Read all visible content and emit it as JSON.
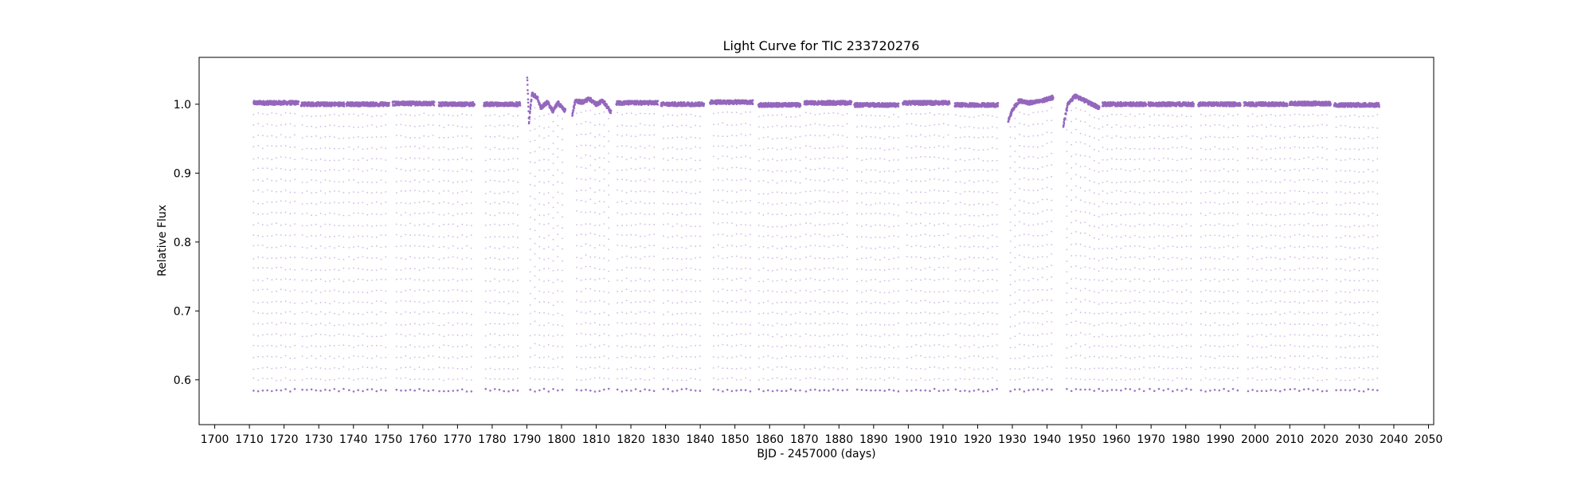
{
  "chart_data": {
    "type": "scatter",
    "title": "Light Curve for TIC 233720276",
    "xlabel": "BJD - 2457000 (days)",
    "ylabel": "Relative Flux",
    "xlim": [
      1695.5,
      2051.5
    ],
    "ylim": [
      0.535,
      1.068
    ],
    "x_ticks": [
      1700,
      1710,
      1720,
      1730,
      1740,
      1750,
      1760,
      1770,
      1780,
      1790,
      1800,
      1810,
      1820,
      1830,
      1840,
      1850,
      1860,
      1870,
      1880,
      1890,
      1900,
      1910,
      1920,
      1930,
      1940,
      1950,
      1960,
      1970,
      1980,
      1990,
      2000,
      2010,
      2020,
      2030,
      2040,
      2050
    ],
    "y_ticks": [
      0.6,
      0.7,
      0.8,
      0.9,
      1.0
    ],
    "grid": false,
    "marker_color": "#9467bd",
    "eclipse_period_days": 1.32,
    "eclipse_min_flux": 0.585,
    "baseline_flux": 1.0,
    "segments": [
      {
        "x": [
          1711.2,
          1724.2
        ],
        "baseline": 1.002
      },
      {
        "x": [
          1724.9,
          1737.4
        ],
        "baseline": 1.0
      },
      {
        "x": [
          1738.0,
          1750.3
        ],
        "baseline": 1.0
      },
      {
        "x": [
          1751.3,
          1763.3
        ],
        "baseline": 1.001
      },
      {
        "x": [
          1764.6,
          1774.9
        ],
        "baseline": 1.0
      },
      {
        "x": [
          1777.6,
          1788.1
        ],
        "baseline": 1.0
      },
      {
        "x": [
          1790.1,
          1801.1
        ],
        "baseline": 1.0,
        "trend": [
          [
            1790.1,
            1.04
          ],
          [
            1790.6,
            0.975
          ],
          [
            1791.5,
            1.015
          ],
          [
            1793.0,
            1.01
          ],
          [
            1794.0,
            0.995
          ],
          [
            1796.0,
            1.003
          ],
          [
            1797.5,
            0.99
          ],
          [
            1799.0,
            1.002
          ],
          [
            1801.1,
            0.99
          ]
        ]
      },
      {
        "x": [
          1803.1,
          1814.3
        ],
        "baseline": 1.0,
        "trend": [
          [
            1803.1,
            0.985
          ],
          [
            1804.0,
            1.005
          ],
          [
            1806.0,
            1.003
          ],
          [
            1808.0,
            1.008
          ],
          [
            1810.0,
            1.0
          ],
          [
            1812.0,
            1.005
          ],
          [
            1814.3,
            0.988
          ]
        ]
      },
      {
        "x": [
          1815.8,
          1827.8
        ],
        "baseline": 1.002
      },
      {
        "x": [
          1828.7,
          1841.1
        ],
        "baseline": 1.0
      },
      {
        "x": [
          1842.8,
          1855.2
        ],
        "baseline": 1.003
      },
      {
        "x": [
          1856.8,
          1868.9
        ],
        "baseline": 0.999
      },
      {
        "x": [
          1870.0,
          1883.6
        ],
        "baseline": 1.002
      },
      {
        "x": [
          1884.4,
          1897.2
        ],
        "baseline": 0.999
      },
      {
        "x": [
          1898.4,
          1911.9
        ],
        "baseline": 1.002
      },
      {
        "x": [
          1913.4,
          1925.9
        ],
        "baseline": 0.999
      },
      {
        "x": [
          1928.8,
          1941.8
        ],
        "baseline": 1.003,
        "trend": [
          [
            1928.8,
            0.975
          ],
          [
            1930.0,
            0.992
          ],
          [
            1932.0,
            1.005
          ],
          [
            1935.0,
            1.002
          ],
          [
            1938.0,
            1.004
          ],
          [
            1941.8,
            1.01
          ]
        ]
      },
      {
        "x": [
          1944.7,
          1955.1
        ],
        "baseline": 1.0,
        "trend": [
          [
            1944.7,
            0.97
          ],
          [
            1946.0,
            1.0
          ],
          [
            1948.0,
            1.012
          ],
          [
            1951.0,
            1.005
          ],
          [
            1955.1,
            0.995
          ]
        ]
      },
      {
        "x": [
          1956.0,
          1968.6
        ],
        "baseline": 1.0
      },
      {
        "x": [
          1969.2,
          1982.3
        ],
        "baseline": 1.0
      },
      {
        "x": [
          1983.6,
          1995.8
        ],
        "baseline": 1.0
      },
      {
        "x": [
          1996.8,
          2009.3
        ],
        "baseline": 1.0
      },
      {
        "x": [
          2009.9,
          2021.8
        ],
        "baseline": 1.001
      },
      {
        "x": [
          2022.8,
          2035.8
        ],
        "baseline": 0.999
      }
    ]
  }
}
